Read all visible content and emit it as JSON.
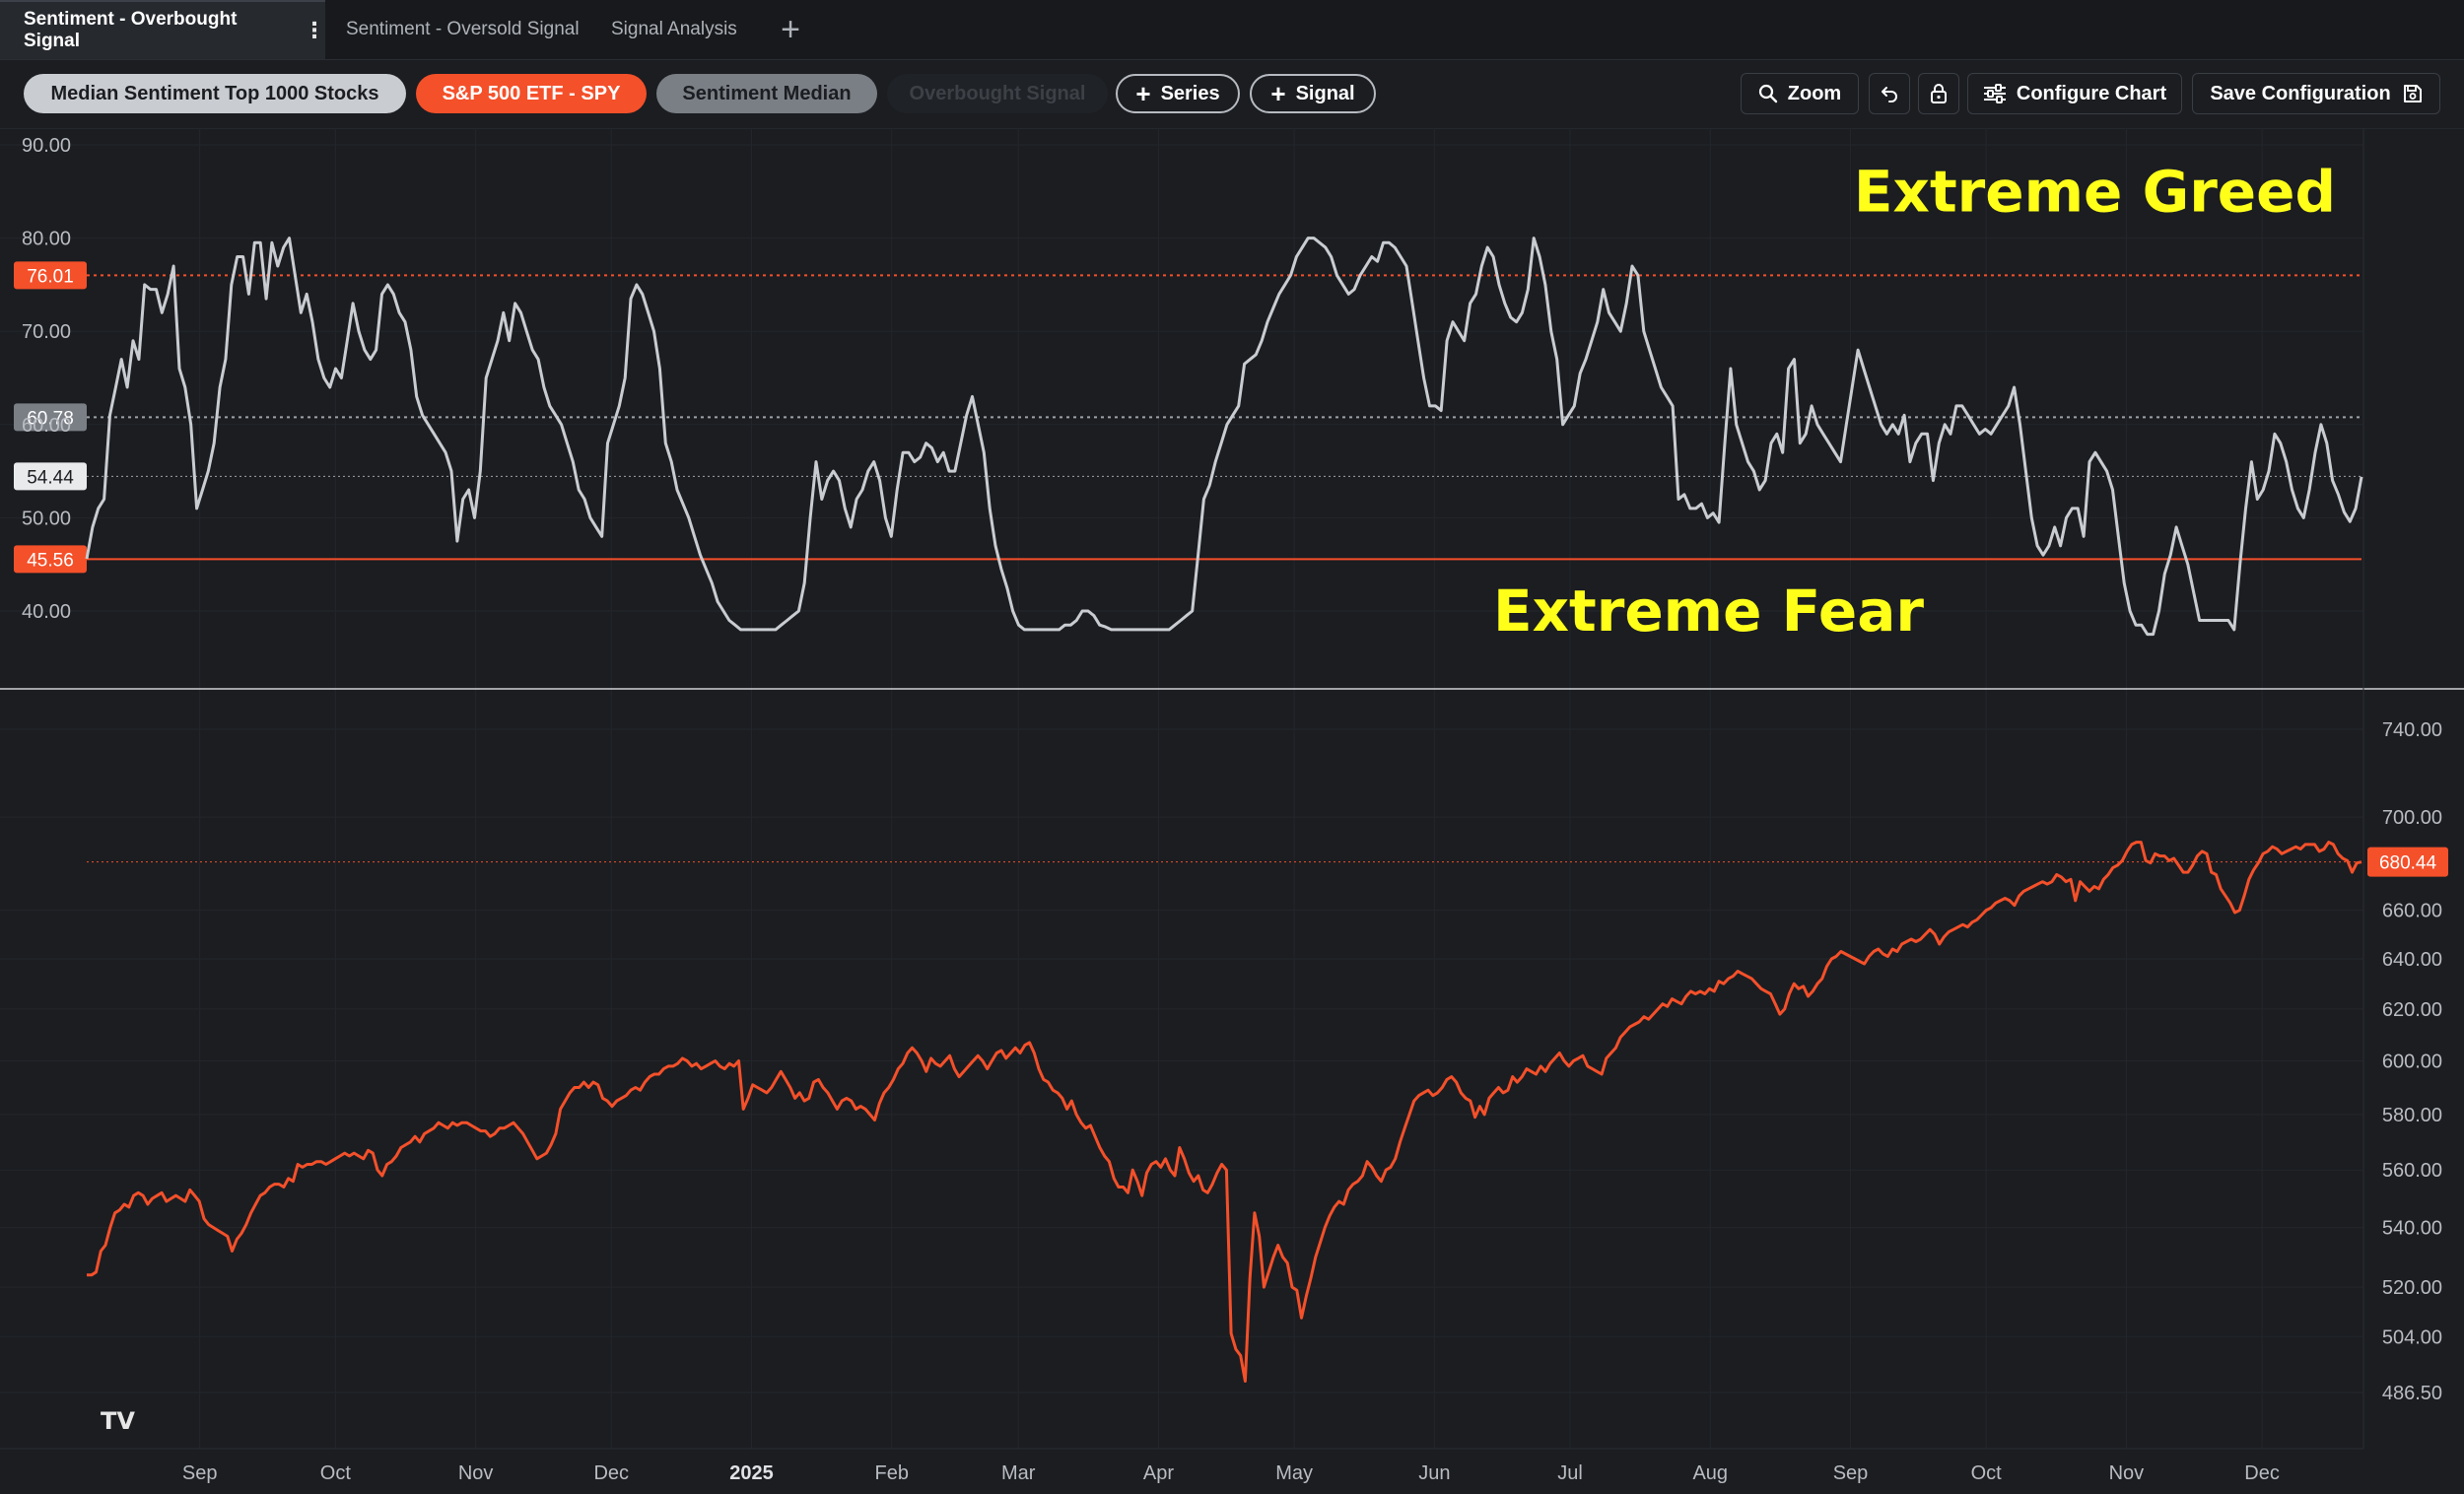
{
  "tabs": [
    {
      "label": "Sentiment - Overbought Signal",
      "active": true
    },
    {
      "label": "Sentiment - Oversold Signal",
      "active": false
    },
    {
      "label": "Signal Analysis",
      "active": false
    }
  ],
  "tab_add_label": "+",
  "toolbar": {
    "series_pills": [
      {
        "label": "Median Sentiment Top 1000 Stocks",
        "color": "#c9ccd1"
      },
      {
        "label": "S&P 500 ETF - SPY",
        "color": "#f4502a"
      },
      {
        "label": "Sentiment Median",
        "color": "#7a7f86"
      },
      {
        "label": "Overbought Signal",
        "color": "#1f2226"
      }
    ],
    "add_series_label": "Series",
    "add_signal_label": "Signal",
    "zoom_label": "Zoom",
    "configure_label": "Configure Chart",
    "save_label": "Save Configuration",
    "icons": [
      "zoom-icon",
      "undo-icon",
      "lock-icon",
      "sliders-icon",
      "save-icon"
    ]
  },
  "chart_data": [
    {
      "type": "line",
      "title": "",
      "series": [
        {
          "name": "Median Sentiment Top 1000 Stocks",
          "color": "#c9ccd1",
          "start": "2024-08-07",
          "step_days": 1.4
        }
      ],
      "y_ticks": [
        40,
        50,
        60,
        70,
        80,
        90
      ],
      "y_tick_labels": [
        "40.00",
        "50.00",
        "60.00",
        "70.00",
        "80.00",
        "90.00"
      ],
      "ylim": [
        32,
        92
      ],
      "reference_lines": [
        {
          "value": 76.01,
          "label": "76.01",
          "style": "dotted",
          "color": "#f4502a"
        },
        {
          "value": 60.78,
          "label": "60.78",
          "style": "dotted",
          "color": "#9ea2a8"
        },
        {
          "value": 54.44,
          "label": "54.44",
          "style": "dotted-thin",
          "color": "#9ea2a8"
        },
        {
          "value": 45.56,
          "label": "45.56",
          "style": "solid",
          "color": "#f4502a"
        }
      ],
      "annotations": [
        {
          "text": "Extreme Greed",
          "value_y": 85
        },
        {
          "text": "Extreme Fear",
          "value_y": 40
        }
      ],
      "values": [
        45.6,
        49,
        51,
        52,
        61,
        64,
        67,
        64,
        69,
        67,
        75,
        74.5,
        74.5,
        72,
        74,
        77,
        66,
        64,
        60,
        51,
        53,
        55,
        58,
        64,
        67,
        75,
        78,
        78,
        74,
        79.5,
        79.5,
        73.5,
        79.5,
        77,
        79,
        80,
        76,
        72,
        74,
        71,
        67,
        65,
        64,
        66,
        65,
        69,
        73,
        70,
        68,
        67,
        68,
        74,
        75,
        74,
        72,
        71,
        68,
        63,
        61,
        60,
        59,
        58,
        57,
        55,
        47.5,
        52,
        53,
        50,
        55,
        65,
        67,
        69,
        72,
        69,
        73,
        72,
        70,
        68,
        67,
        64,
        62,
        61,
        60,
        58,
        56,
        53,
        52,
        50,
        49,
        48,
        58,
        60,
        62,
        65,
        73.5,
        75,
        74,
        72,
        70,
        66,
        58,
        56,
        53,
        51.5,
        50,
        48,
        46,
        44.5,
        43,
        41,
        40,
        39,
        38.5,
        38,
        38,
        38,
        38,
        38,
        38,
        38,
        38.5,
        39,
        39.5,
        40,
        43,
        50,
        56,
        52,
        54,
        55,
        54,
        51,
        49,
        52,
        53,
        55,
        56,
        54,
        50,
        48,
        53,
        57,
        57,
        56,
        56.5,
        58,
        57.5,
        56,
        57,
        55,
        55,
        58,
        61,
        63,
        60,
        57,
        51,
        47,
        44.5,
        42.5,
        40,
        38.5,
        38,
        38,
        38,
        38,
        38,
        38,
        38,
        38.5,
        38.5,
        39,
        40,
        40,
        39.5,
        38.5,
        38.3,
        38,
        38,
        38,
        38,
        38,
        38,
        38,
        38,
        38,
        38,
        38,
        38.5,
        39,
        39.5,
        40,
        46,
        52,
        53.5,
        56,
        58,
        60,
        61,
        62,
        66.5,
        67,
        67.5,
        69,
        71,
        72.5,
        74,
        75,
        76,
        78,
        79,
        80,
        80,
        79.5,
        79,
        78,
        76,
        75,
        74,
        74.5,
        76,
        77,
        78,
        77.5,
        79.5,
        79.5,
        79,
        78,
        77,
        73,
        69,
        65,
        62,
        62,
        61.5,
        69,
        71,
        70,
        69,
        73,
        74,
        77,
        79,
        78,
        75,
        73,
        71.5,
        71,
        72,
        74.5,
        80,
        78,
        75,
        70,
        67,
        60,
        61,
        62,
        65.5,
        67,
        69,
        71,
        74.5,
        72,
        71,
        70,
        73,
        77,
        76,
        70,
        68,
        66,
        64,
        63,
        62,
        52,
        52.5,
        51,
        51,
        51.5,
        50,
        50.5,
        49.5,
        58,
        66,
        60,
        58,
        56,
        55,
        53,
        54,
        58,
        59,
        57,
        66,
        67,
        58,
        59,
        62,
        60,
        59,
        58,
        57,
        56,
        60,
        64,
        68,
        66,
        64,
        62,
        60,
        59,
        60,
        59,
        61,
        56,
        58,
        59,
        59,
        54,
        58,
        60,
        59,
        62,
        62,
        61,
        60,
        59,
        59.5,
        59,
        60,
        61,
        62,
        64,
        60,
        55,
        50,
        47,
        46,
        47,
        49,
        47,
        50,
        51,
        51,
        48,
        56,
        57,
        56,
        55,
        53,
        48,
        43,
        40,
        38.5,
        38.5,
        37.5,
        37.5,
        40,
        44,
        46,
        49,
        47,
        45,
        42,
        39,
        39,
        39,
        39,
        39,
        39,
        38,
        45,
        51,
        56,
        52,
        53,
        55,
        59,
        58,
        56,
        53,
        51,
        50,
        53,
        57,
        60,
        58,
        54,
        52.5,
        50.6,
        49.6,
        51,
        54.4
      ],
      "x_ticks": [
        {
          "label": "Sep",
          "bold": false
        },
        {
          "label": "Oct",
          "bold": false
        },
        {
          "label": "Nov",
          "bold": false
        },
        {
          "label": "Dec",
          "bold": false
        },
        {
          "label": "2025",
          "bold": true
        },
        {
          "label": "Feb",
          "bold": false
        },
        {
          "label": "Mar",
          "bold": false
        },
        {
          "label": "Apr",
          "bold": false
        },
        {
          "label": "May",
          "bold": false
        },
        {
          "label": "Jun",
          "bold": false
        },
        {
          "label": "Jul",
          "bold": false
        },
        {
          "label": "Aug",
          "bold": false
        },
        {
          "label": "Sep",
          "bold": false
        },
        {
          "label": "Oct",
          "bold": false
        },
        {
          "label": "Nov",
          "bold": false
        },
        {
          "label": "Dec",
          "bold": false
        }
      ]
    },
    {
      "type": "line",
      "title": "",
      "series": [
        {
          "name": "S&P 500 ETF - SPY",
          "color": "#f4502a",
          "last_value": 680.44
        }
      ],
      "y_scale": "log",
      "y_ticks": [
        486.5,
        504,
        520,
        540,
        560,
        580,
        600,
        620,
        640,
        660,
        700,
        740
      ],
      "y_tick_labels": [
        "486.50",
        "504.00",
        "520.00",
        "540.00",
        "560.00",
        "580.00",
        "600.00",
        "620.00",
        "640.00",
        "660.00",
        "700.00",
        "740.00"
      ],
      "ylim": [
        475,
        750
      ],
      "reference_lines": [
        {
          "value": 680.44,
          "label": "680.44",
          "style": "dotted-thin",
          "color": "#f4502a"
        }
      ],
      "values": [
        524,
        524,
        525,
        532,
        534,
        540,
        545,
        546,
        548,
        547,
        551,
        552,
        551,
        548,
        550,
        551,
        552,
        549,
        550,
        551,
        550,
        549,
        553,
        551,
        549,
        543,
        541,
        540,
        539,
        538,
        537,
        532,
        536,
        538,
        541,
        545,
        548,
        551,
        552,
        554,
        555,
        555,
        554,
        557,
        556,
        562,
        561,
        562,
        562,
        563,
        563,
        562,
        563,
        564,
        565,
        566,
        565,
        566,
        565,
        564,
        567,
        566,
        560,
        558,
        562,
        563,
        565,
        568,
        569,
        570,
        572,
        570,
        573,
        574,
        575,
        577,
        576,
        575,
        577,
        576,
        577,
        577,
        576,
        575,
        574,
        574,
        572,
        573,
        575,
        575,
        576,
        577,
        575,
        573,
        570,
        567,
        564,
        565,
        566,
        569,
        573,
        582,
        585,
        588,
        590,
        590,
        592,
        590,
        592,
        591,
        586,
        585,
        583,
        585,
        586,
        587,
        589,
        590,
        589,
        592,
        594,
        595,
        595,
        597,
        598,
        598,
        599,
        601,
        600,
        598,
        599,
        597,
        598,
        599,
        600,
        598,
        597,
        599,
        598,
        600,
        582,
        586,
        591,
        590,
        589,
        588,
        590,
        593,
        596,
        593,
        590,
        586,
        588,
        585,
        586,
        592,
        593,
        590,
        588,
        585,
        582,
        585,
        586,
        585,
        582,
        583,
        582,
        580,
        578,
        584,
        588,
        590,
        593,
        597,
        599,
        603,
        605,
        603,
        600,
        596,
        601,
        599,
        598,
        600,
        602,
        597,
        594,
        596,
        598,
        600,
        602,
        600,
        597,
        600,
        603,
        604,
        601,
        603,
        605,
        603,
        606,
        607,
        603,
        597,
        593,
        592,
        589,
        588,
        586,
        582,
        585,
        580,
        577,
        575,
        576,
        572,
        568,
        565,
        563,
        557,
        554,
        554,
        552,
        560,
        556,
        551,
        559,
        562,
        563,
        561,
        564,
        560,
        558,
        568,
        564,
        559,
        556,
        558,
        553,
        552,
        555,
        559,
        562,
        560,
        505,
        500,
        498,
        490,
        523,
        545,
        537,
        520,
        525,
        530,
        534,
        530,
        528,
        520,
        519,
        510,
        517,
        523,
        530,
        535,
        540,
        544,
        547,
        549,
        548,
        553,
        555,
        556,
        558,
        563,
        561,
        558,
        556,
        560,
        561,
        564,
        570,
        575,
        580,
        585,
        587,
        588,
        589,
        587,
        588,
        590,
        593,
        594,
        592,
        588,
        586,
        585,
        579,
        583,
        580,
        586,
        588,
        590,
        588,
        589,
        594,
        592,
        594,
        597,
        596,
        595,
        598,
        596,
        599,
        601,
        603,
        600,
        598,
        600,
        601,
        602,
        598,
        597,
        596,
        595,
        601,
        603,
        605,
        609,
        611,
        613,
        614,
        615,
        617,
        616,
        618,
        620,
        622,
        621,
        624,
        623,
        622,
        625,
        627,
        626,
        627,
        626,
        628,
        627,
        631,
        630,
        632,
        633,
        635,
        634,
        633,
        632,
        630,
        628,
        627,
        626,
        622,
        618,
        620,
        626,
        630,
        628,
        629,
        625,
        627,
        630,
        632,
        637,
        640,
        641,
        643,
        642,
        641,
        640,
        639,
        638,
        641,
        643,
        644,
        642,
        641,
        644,
        643,
        646,
        647,
        648,
        647,
        648,
        650,
        652,
        650,
        646,
        649,
        651,
        652,
        653,
        654,
        653,
        655,
        656,
        658,
        660,
        661,
        663,
        664,
        665,
        664,
        662,
        666,
        668,
        669,
        670,
        671,
        672,
        671,
        672,
        675,
        674,
        672,
        673,
        664,
        672,
        670,
        668,
        670,
        669,
        673,
        675,
        678,
        679,
        681,
        685,
        688,
        689,
        689,
        681,
        680,
        684,
        683,
        683,
        681,
        682,
        679,
        676,
        676,
        679,
        683,
        685,
        684,
        676,
        675,
        669,
        666,
        663,
        659,
        660,
        666,
        673,
        677,
        680,
        684,
        685,
        687,
        686,
        684,
        685,
        686,
        687,
        686,
        688,
        688,
        688,
        685,
        686,
        689,
        688,
        684,
        682,
        681,
        676,
        680,
        680.4
      ]
    }
  ],
  "brand": {
    "logo_text": "TV"
  }
}
